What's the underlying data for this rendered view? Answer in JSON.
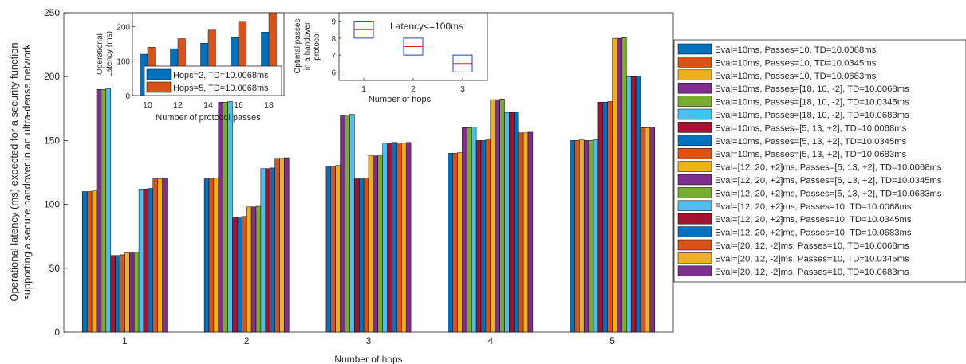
{
  "palette": [
    "#0072BD",
    "#D95319",
    "#EDB120",
    "#7E2F8E",
    "#77AC30",
    "#4DBEEE",
    "#A2142F"
  ],
  "chart_data": [
    {
      "type": "bar",
      "xlabel": "Number of hops",
      "ylabel_lines": [
        "Operational latency (ms) expected for a security function",
        "supporting a secure handover in an ultra-dense network"
      ],
      "categories": [
        "1",
        "2",
        "3",
        "4",
        "5"
      ],
      "ylim": [
        0,
        250
      ],
      "yticks": [
        "0",
        "50",
        "100",
        "150",
        "200",
        "250"
      ],
      "series": [
        {
          "name": "Eval=10ms, Passes=10, TD=10.0068ms",
          "color": "#0072BD",
          "values": [
            110,
            120,
            130,
            140,
            150
          ]
        },
        {
          "name": "Eval=10ms, Passes=10, TD=10.0345ms",
          "color": "#D95319",
          "values": [
            110,
            120,
            130,
            140,
            150
          ]
        },
        {
          "name": "Eval=10ms, Passes=10, TD=10.0683ms",
          "color": "#EDB120",
          "values": [
            110.5,
            120.5,
            130.5,
            140.5,
            150.5
          ]
        },
        {
          "name": "Eval=10ms, Passes=[18, 10, -2], TD=10.0068ms",
          "color": "#7E2F8E",
          "values": [
            190,
            180,
            170,
            160,
            150
          ]
        },
        {
          "name": "Eval=10ms, Passes=[18, 10, -2], TD=10.0345ms",
          "color": "#77AC30",
          "values": [
            190,
            180,
            170,
            160,
            150
          ]
        },
        {
          "name": "Eval=10ms, Passes=[18, 10, -2], TD=10.0683ms",
          "color": "#4DBEEE",
          "values": [
            190.5,
            180.5,
            170.5,
            160.5,
            150.5
          ]
        },
        {
          "name": "Eval=10ms, Passes=[5, 13, +2], TD=10.0068ms",
          "color": "#A2142F",
          "values": [
            60,
            90,
            120,
            150,
            180
          ]
        },
        {
          "name": "Eval=10ms, Passes=[5, 13, +2], TD=10.0345ms",
          "color": "#0072BD",
          "values": [
            60,
            90,
            120,
            150,
            180
          ]
        },
        {
          "name": "Eval=10ms, Passes=[5, 13, +2], TD=10.0683ms",
          "color": "#D95319",
          "values": [
            60.5,
            90.5,
            120.5,
            150.5,
            180.5
          ]
        },
        {
          "name": "Eval=[12, 20, +2]ms, Passes=[5, 13, +2], TD=10.0068ms",
          "color": "#EDB120",
          "values": [
            62,
            98,
            138,
            182,
            230
          ]
        },
        {
          "name": "Eval=[12, 20, +2]ms, Passes=[5, 13, +2], TD=10.0345ms",
          "color": "#7E2F8E",
          "values": [
            62,
            98,
            138,
            182,
            230
          ]
        },
        {
          "name": "Eval=[12, 20, +2]ms, Passes=[5, 13, +2], TD=10.0683ms",
          "color": "#77AC30",
          "values": [
            62.5,
            98.5,
            138.5,
            182.5,
            230.5
          ]
        },
        {
          "name": "Eval=[12, 20, +2]ms, Passes=10, TD=10.0068ms",
          "color": "#4DBEEE",
          "values": [
            112,
            128,
            148,
            172,
            200
          ]
        },
        {
          "name": "Eval=[12, 20, +2]ms, Passes=10, TD=10.0345ms",
          "color": "#A2142F",
          "values": [
            112,
            128,
            148,
            172,
            200
          ]
        },
        {
          "name": "Eval=[12, 20, +2]ms, Passes=10, TD=10.0683ms",
          "color": "#0072BD",
          "values": [
            112.5,
            128.5,
            148.5,
            172.5,
            200.5
          ]
        },
        {
          "name": "Eval=[20, 12, -2]ms, Passes=10, TD=10.0068ms",
          "color": "#D95319",
          "values": [
            120,
            136,
            148,
            156,
            160
          ]
        },
        {
          "name": "Eval=[20, 12, -2]ms, Passes=10, TD=10.0345ms",
          "color": "#EDB120",
          "values": [
            120,
            136,
            148,
            156,
            160
          ]
        },
        {
          "name": "Eval=[20, 12, -2]ms, Passes=10, TD=10.0683ms",
          "color": "#7E2F8E",
          "values": [
            120.5,
            136.5,
            148.5,
            156.5,
            160.5
          ]
        }
      ],
      "legend_position": "right"
    },
    {
      "type": "bar",
      "xlabel": "Number of protocol passes",
      "ylabel_lines": [
        "Operational",
        "Latency (ms)"
      ],
      "categories": [
        "10",
        "12",
        "14",
        "16",
        "18"
      ],
      "ylim": [
        0,
        240
      ],
      "yticks": [
        "0",
        "100",
        "200"
      ],
      "series": [
        {
          "name": "Hops=2, TD=10.0068ms",
          "color": "#0072BD",
          "values": [
            120,
            136,
            152,
            168,
            184
          ]
        },
        {
          "name": "Hops=5, TD=10.0068ms",
          "color": "#D95319",
          "values": [
            140,
            165,
            190,
            215,
            240
          ]
        }
      ],
      "legend_position": "bottom-left"
    },
    {
      "type": "box",
      "xlabel": "Number of hops",
      "ylabel_lines": [
        "Optimal passes",
        "in a handover",
        "protocol"
      ],
      "annotation": "Latency<=100ms",
      "categories": [
        "1",
        "2",
        "3"
      ],
      "ylim": [
        5.5,
        9.5
      ],
      "yticks": [
        "6",
        "7",
        "8",
        "9"
      ],
      "boxes": [
        {
          "q1": 8.0,
          "median": 8.5,
          "q3": 9.0
        },
        {
          "q1": 7.0,
          "median": 7.5,
          "q3": 8.0
        },
        {
          "q1": 6.0,
          "median": 6.5,
          "q3": 7.0
        }
      ]
    }
  ]
}
